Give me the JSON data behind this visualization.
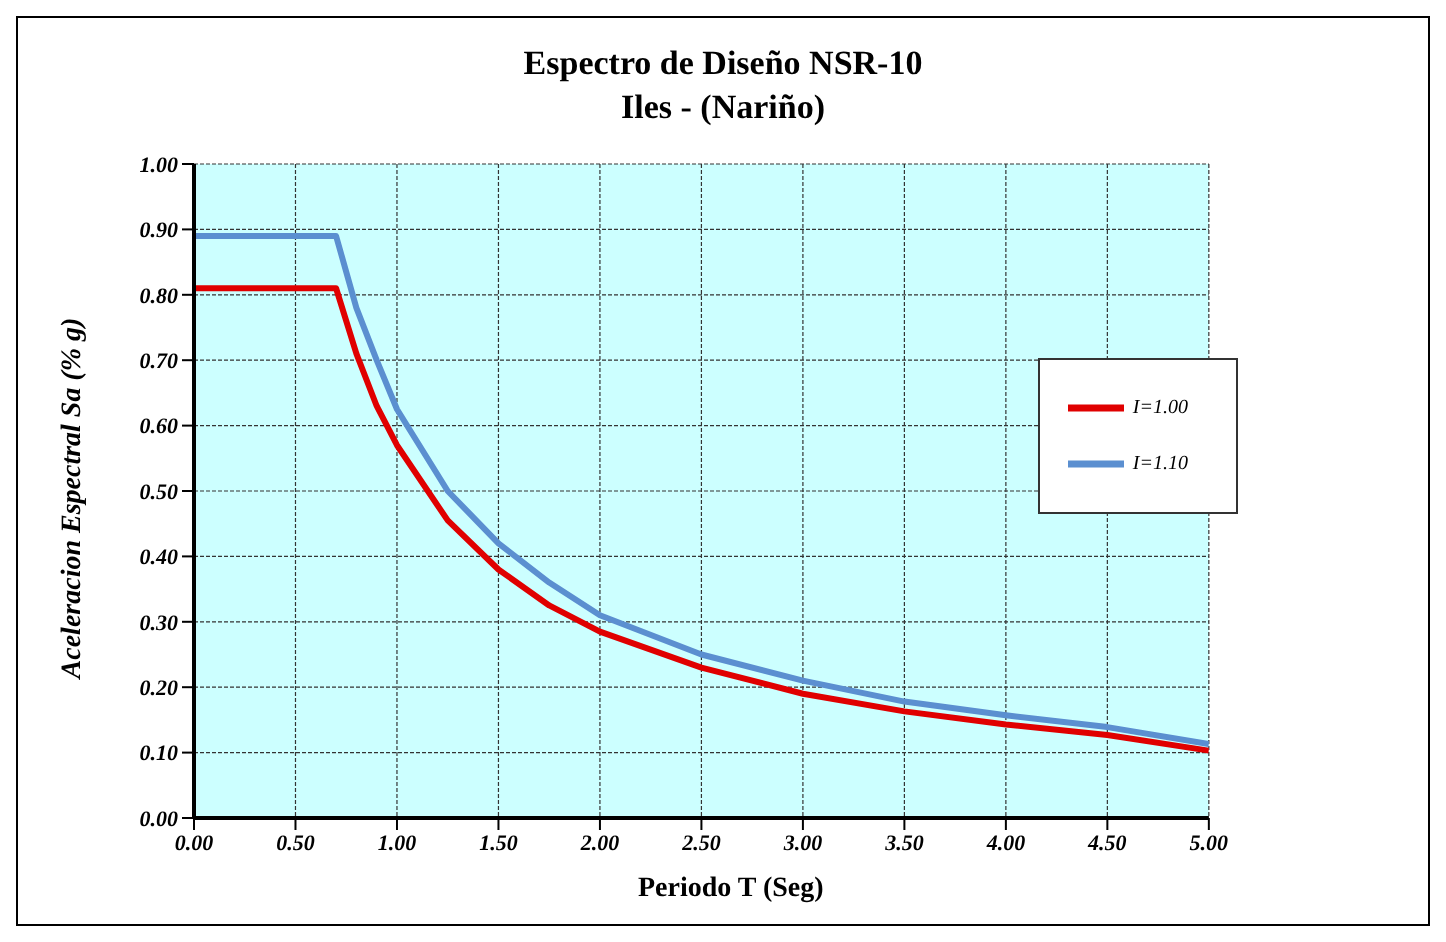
{
  "chart_data": {
    "type": "line",
    "title": "Espectro de Diseño NSR-10",
    "subtitle": "Iles - (Nariño)",
    "xlabel": "Periodo T (Seg)",
    "ylabel": "Aceleracion Espectral Sa (% g)",
    "x": [
      0,
      0.5,
      0.7,
      0.8,
      0.9,
      1.0,
      1.25,
      1.5,
      1.75,
      2.0,
      2.5,
      3.0,
      3.5,
      4.0,
      4.5,
      5.0
    ],
    "series": [
      {
        "name": "I=1.00",
        "color": "#e00000",
        "values": [
          0.81,
          0.81,
          0.81,
          0.71,
          0.63,
          0.57,
          0.455,
          0.38,
          0.325,
          0.285,
          0.23,
          0.19,
          0.163,
          0.143,
          0.127,
          0.103
        ]
      },
      {
        "name": "I=1.10",
        "color": "#5b8fd0",
        "values": [
          0.89,
          0.89,
          0.89,
          0.78,
          0.7,
          0.625,
          0.5,
          0.42,
          0.36,
          0.31,
          0.25,
          0.21,
          0.178,
          0.157,
          0.139,
          0.113
        ]
      }
    ],
    "xlim": [
      0,
      5
    ],
    "xticks": [
      {
        "value": 0,
        "label": "0.00"
      },
      {
        "value": 0.5,
        "label": "0.50"
      },
      {
        "value": 1,
        "label": "1.00"
      },
      {
        "value": 1.5,
        "label": "1.50"
      },
      {
        "value": 2,
        "label": "2.00"
      },
      {
        "value": 2.5,
        "label": "2.50"
      },
      {
        "value": 3,
        "label": "3.00"
      },
      {
        "value": 3.5,
        "label": "3.50"
      },
      {
        "value": 4,
        "label": "4.00"
      },
      {
        "value": 4.5,
        "label": "4.50"
      },
      {
        "value": 5,
        "label": "5.00"
      }
    ],
    "ylim": [
      0,
      1
    ],
    "yticks": [
      {
        "value": 0,
        "label": "0.00"
      },
      {
        "value": 0.1,
        "label": "0.10"
      },
      {
        "value": 0.2,
        "label": "0.20"
      },
      {
        "value": 0.3,
        "label": "0.30"
      },
      {
        "value": 0.4,
        "label": "0.40"
      },
      {
        "value": 0.5,
        "label": "0.50"
      },
      {
        "value": 0.6,
        "label": "0.60"
      },
      {
        "value": 0.7,
        "label": "0.70"
      },
      {
        "value": 0.8,
        "label": "0.80"
      },
      {
        "value": 0.9,
        "label": "0.90"
      },
      {
        "value": 1,
        "label": "1.00"
      }
    ],
    "grid": true,
    "legend": "right",
    "marker": "none",
    "line_style": "solid"
  }
}
